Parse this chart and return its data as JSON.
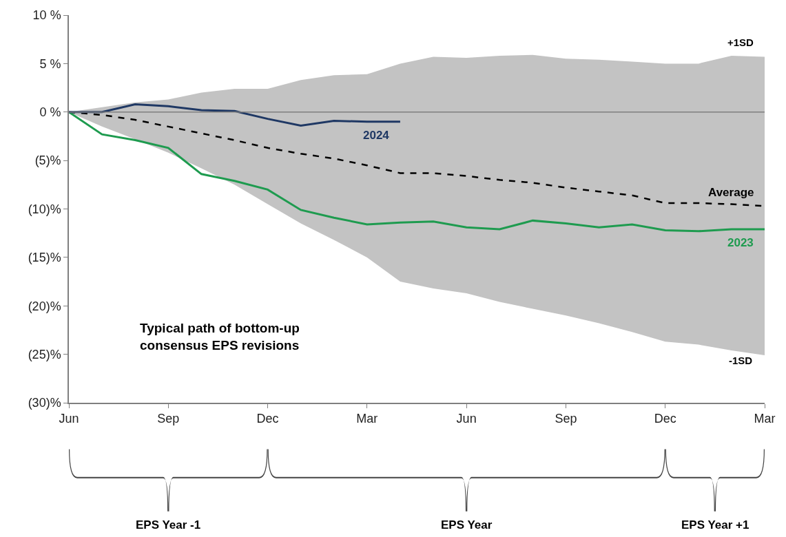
{
  "chart_data": {
    "type": "line",
    "categories": [
      "Jun",
      null,
      null,
      "Sep",
      null,
      null,
      "Dec",
      null,
      null,
      "Mar",
      null,
      null,
      "Jun",
      null,
      null,
      "Sep",
      null,
      null,
      "Dec",
      null,
      null,
      "Mar"
    ],
    "ylim": [
      -30,
      10
    ],
    "yticks": [
      {
        "value": 10,
        "label": "10 %"
      },
      {
        "value": 5,
        "label": "5 %"
      },
      {
        "value": 0,
        "label": "0 %"
      },
      {
        "value": -5,
        "label": "(5)%"
      },
      {
        "value": -10,
        "label": "(10)%"
      },
      {
        "value": -15,
        "label": "(15)%"
      },
      {
        "value": -20,
        "label": "(20)%"
      },
      {
        "value": -25,
        "label": "(25)%"
      },
      {
        "value": -30,
        "label": "(30)%"
      }
    ],
    "series": [
      {
        "name": "Average",
        "color": "#000000",
        "line_style": "dashed",
        "values": [
          0,
          -0.3,
          -0.8,
          -1.5,
          -2.2,
          -2.9,
          -3.7,
          -4.3,
          -4.8,
          -5.5,
          -6.3,
          -6.3,
          -6.6,
          -7.0,
          -7.3,
          -7.8,
          -8.2,
          -8.6,
          -9.4,
          -9.4,
          -9.5,
          -9.7
        ],
        "lower": [
          0,
          -1.5,
          -2.8,
          -4.2,
          -5.8,
          -7.5,
          -9.5,
          -11.5,
          -13.2,
          -15.0,
          -17.5,
          -18.2,
          -18.7,
          -19.6,
          -20.3,
          -21.0,
          -21.8,
          -22.7,
          -23.7,
          -24.0,
          -24.6,
          -25.1
        ],
        "upper": [
          0,
          0.5,
          1.0,
          1.3,
          2.0,
          2.4,
          2.4,
          3.3,
          3.8,
          3.9,
          5.0,
          5.7,
          5.6,
          5.8,
          5.9,
          5.5,
          5.4,
          5.2,
          5.0,
          5.0,
          5.8,
          5.7
        ]
      },
      {
        "name": "2023",
        "color": "#1e9b4f",
        "values": [
          0,
          -2.3,
          -2.9,
          -3.7,
          -6.4,
          -7.1,
          -8.0,
          -10.1,
          -10.9,
          -11.6,
          -11.4,
          -11.3,
          -11.9,
          -12.1,
          -11.2,
          -11.5,
          -11.9,
          -11.6,
          -12.2,
          -12.3,
          -12.1,
          -12.1
        ]
      },
      {
        "name": "2024",
        "color": "#1f3864",
        "values": [
          0,
          0.0,
          0.8,
          0.6,
          0.2,
          0.1,
          -0.7,
          -1.4,
          -0.9,
          -1.0,
          -1.0,
          null,
          null,
          null,
          null,
          null,
          null,
          null,
          null,
          null,
          null,
          null
        ]
      }
    ],
    "ref_lines": [
      {
        "axis": "y",
        "value": 0,
        "color": "#7f7f7f"
      }
    ],
    "annotations": [
      "+1SD",
      "-1SD",
      "Typical path of bottom-up\nconsensus EPS revisions",
      "EPS Year -1",
      "EPS Year",
      "EPS Year +1"
    ],
    "legend": false,
    "line_style": "solid",
    "marker": "none"
  }
}
